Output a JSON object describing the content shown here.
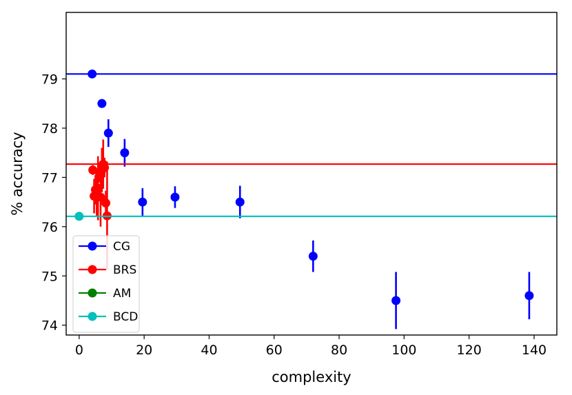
{
  "chart_data": {
    "type": "scatter",
    "xlabel": "complexity",
    "ylabel": "% accuracy",
    "xlim": [
      -4,
      147
    ],
    "ylim": [
      73.8,
      80.35
    ],
    "xticks": [
      0,
      20,
      40,
      60,
      80,
      100,
      120,
      140
    ],
    "yticks": [
      74,
      75,
      76,
      77,
      78,
      79
    ],
    "grid": false,
    "legend_position": "lower-left",
    "series": [
      {
        "name": "CG",
        "color": "#0000ff",
        "hline": 79.1,
        "points": [
          {
            "x": 4,
            "y": 79.1,
            "err": 0
          },
          {
            "x": 7,
            "y": 78.5,
            "err": 0
          },
          {
            "x": 9,
            "y": 77.9,
            "err": 0.28
          },
          {
            "x": 14,
            "y": 77.5,
            "err": 0.28
          },
          {
            "x": 19.5,
            "y": 76.5,
            "err": 0.28
          },
          {
            "x": 29.5,
            "y": 76.6,
            "err": 0.22
          },
          {
            "x": 49.5,
            "y": 76.5,
            "err": 0.33
          },
          {
            "x": 72,
            "y": 75.4,
            "err": 0.32
          },
          {
            "x": 97.5,
            "y": 74.5,
            "err": 0.58
          },
          {
            "x": 138.5,
            "y": 74.6,
            "err": 0.48
          }
        ]
      },
      {
        "name": "BRS",
        "color": "#ff0000",
        "hline": 77.27,
        "points": [
          {
            "x": 4.2,
            "y": 77.15,
            "err": 0.1
          },
          {
            "x": 4.6,
            "y": 76.62,
            "err": 0.35
          },
          {
            "x": 5.0,
            "y": 76.75,
            "err": 0.3
          },
          {
            "x": 5.4,
            "y": 76.65,
            "err": 0.45
          },
          {
            "x": 5.8,
            "y": 76.78,
            "err": 0.65
          },
          {
            "x": 6.2,
            "y": 77.1,
            "err": 0.2
          },
          {
            "x": 6.6,
            "y": 76.6,
            "err": 0.6
          },
          {
            "x": 7.0,
            "y": 77.15,
            "err": 0.45
          },
          {
            "x": 7.4,
            "y": 77.27,
            "err": 0.5
          },
          {
            "x": 7.8,
            "y": 77.2,
            "err": 0.2
          },
          {
            "x": 8.2,
            "y": 76.48,
            "err": 0.25
          },
          {
            "x": 8.6,
            "y": 76.22,
            "err": 1.1
          }
        ]
      },
      {
        "name": "AM",
        "color": "#008000",
        "hline": null,
        "points": []
      },
      {
        "name": "BCD",
        "color": "#00bfbf",
        "hline": 76.21,
        "points": [
          {
            "x": 0,
            "y": 76.21,
            "err": 0
          }
        ]
      }
    ]
  }
}
